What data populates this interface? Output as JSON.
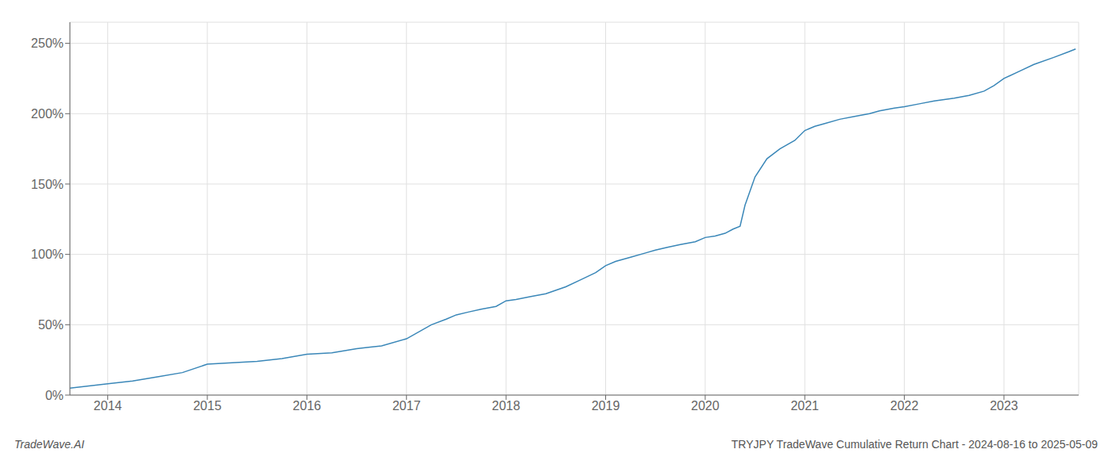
{
  "chart_data": {
    "type": "line",
    "x": [
      2013.62,
      2014.0,
      2014.25,
      2014.5,
      2014.75,
      2015.0,
      2015.25,
      2015.5,
      2015.75,
      2016.0,
      2016.25,
      2016.5,
      2016.62,
      2016.75,
      2017.0,
      2017.25,
      2017.4,
      2017.5,
      2017.62,
      2017.75,
      2017.9,
      2018.0,
      2018.1,
      2018.25,
      2018.4,
      2018.6,
      2018.75,
      2018.9,
      2019.0,
      2019.1,
      2019.25,
      2019.4,
      2019.5,
      2019.62,
      2019.75,
      2019.9,
      2020.0,
      2020.1,
      2020.2,
      2020.28,
      2020.35,
      2020.4,
      2020.5,
      2020.62,
      2020.75,
      2020.9,
      2021.0,
      2021.1,
      2021.2,
      2021.35,
      2021.5,
      2021.65,
      2021.75,
      2021.9,
      2022.0,
      2022.15,
      2022.3,
      2022.5,
      2022.65,
      2022.8,
      2022.9,
      2023.0,
      2023.15,
      2023.3,
      2023.5,
      2023.65,
      2023.72
    ],
    "values": [
      5,
      8,
      10,
      13,
      16,
      22,
      23,
      24,
      26,
      29,
      30,
      33,
      34,
      35,
      40,
      50,
      54,
      57,
      59,
      61,
      63,
      67,
      68,
      70,
      72,
      77,
      82,
      87,
      92,
      95,
      98,
      101,
      103,
      105,
      107,
      109,
      112,
      113,
      115,
      118,
      120,
      135,
      155,
      168,
      175,
      181,
      188,
      191,
      193,
      196,
      198,
      200,
      202,
      204,
      205,
      207,
      209,
      211,
      213,
      216,
      220,
      225,
      230,
      235,
      240,
      244,
      246
    ],
    "color": "#3a87b8",
    "xlim": [
      2013.62,
      2023.75
    ],
    "ylim": [
      0,
      265
    ],
    "xticks": [
      2014,
      2015,
      2016,
      2017,
      2018,
      2019,
      2020,
      2021,
      2022,
      2023
    ],
    "yticks": [
      {
        "value": 0,
        "label": "0%"
      },
      {
        "value": 50,
        "label": "50%"
      },
      {
        "value": 100,
        "label": "100%"
      },
      {
        "value": 150,
        "label": "150%"
      },
      {
        "value": 200,
        "label": "200%"
      },
      {
        "value": 250,
        "label": "250%"
      }
    ],
    "grid": true,
    "annotations": [
      "TradeWave.AI",
      "TRYJPY TradeWave Cumulative Return Chart - 2024-08-16 to 2025-05-09"
    ]
  }
}
